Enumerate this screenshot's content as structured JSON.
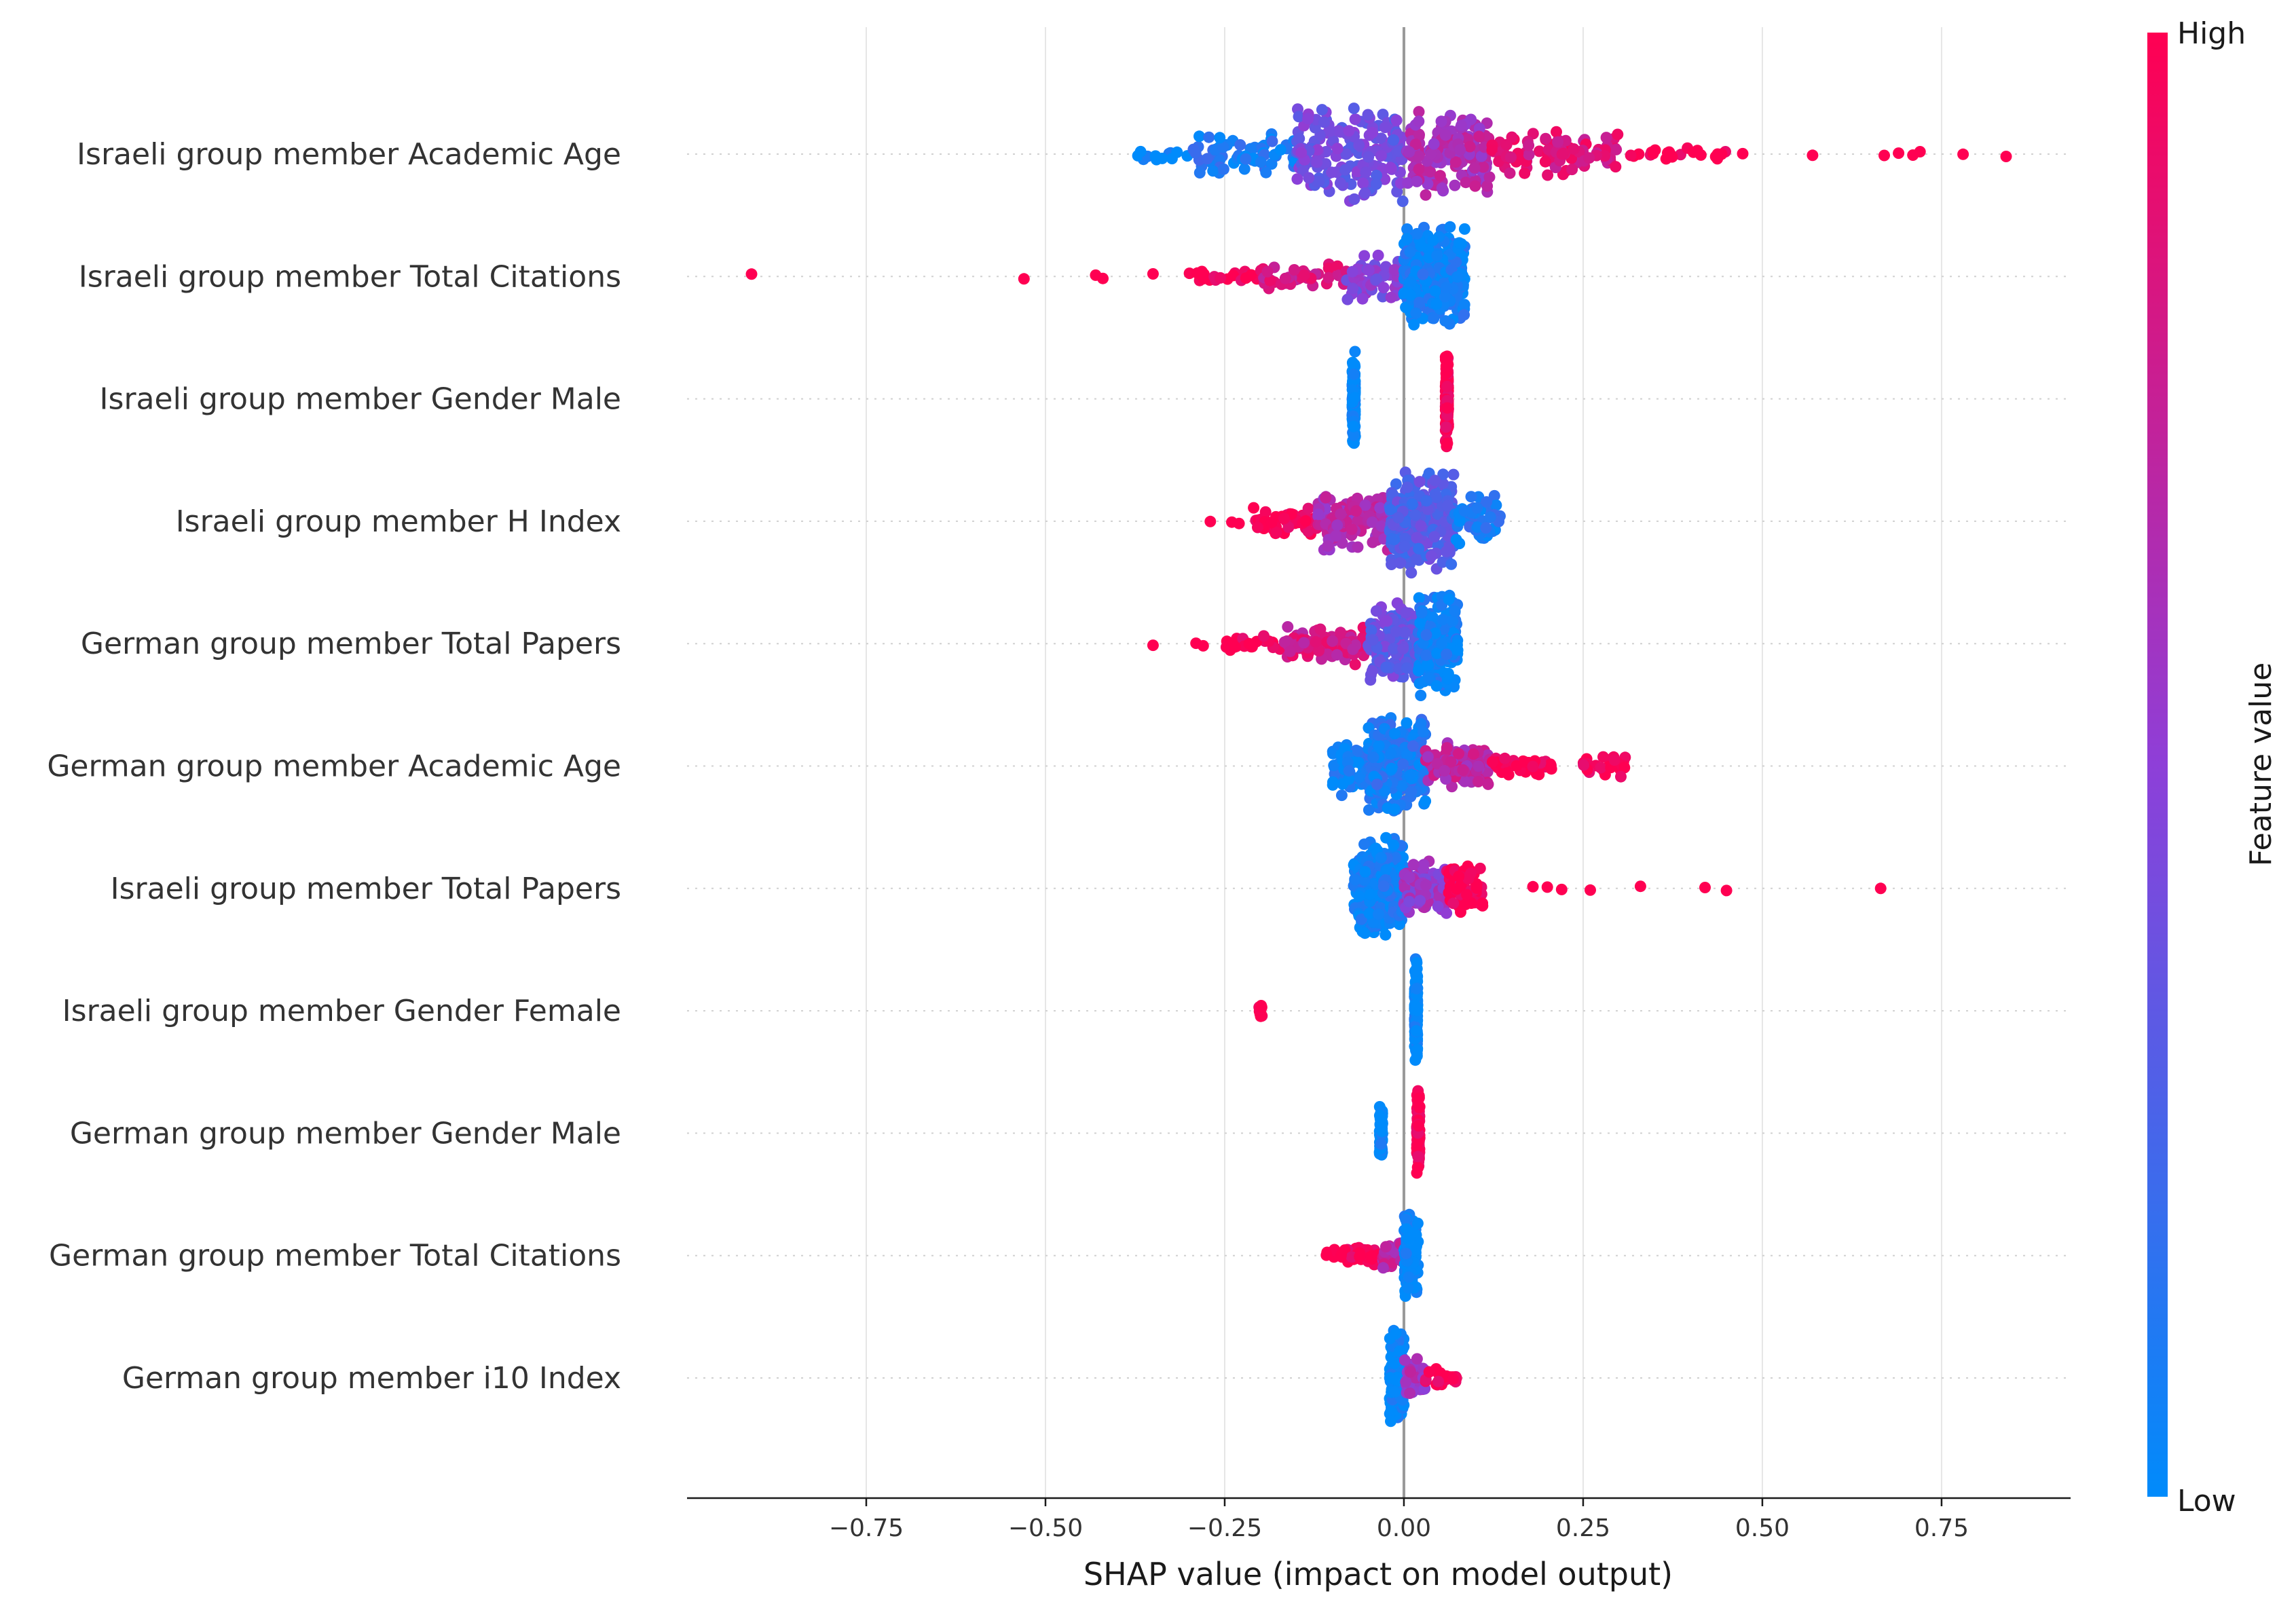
{
  "chart_data": {
    "type": "scatter",
    "subtype": "shap-beeswarm",
    "xlabel": "SHAP value (impact on model output)",
    "xlim": [
      -1.0,
      0.93
    ],
    "xticks": [
      -0.75,
      -0.5,
      -0.25,
      0.0,
      0.25,
      0.5,
      0.75
    ],
    "xtick_labels": [
      "−0.75",
      "−0.50",
      "−0.25",
      "0.00",
      "0.25",
      "0.50",
      "0.75"
    ],
    "grid": "vertical",
    "colorbar": {
      "title": "Feature value",
      "high_label": "High",
      "low_label": "Low",
      "low_color": "#008bfb",
      "high_color": "#ff0052",
      "mid_color": "#8e3fd8"
    },
    "features": [
      {
        "name": "Israeli group member Academic Age",
        "bands": [
          {
            "from": -0.38,
            "to": -0.3,
            "n": 12,
            "spread": 0.15,
            "value": 0.0
          },
          {
            "from": -0.3,
            "to": -0.15,
            "n": 70,
            "spread": 0.45,
            "value": 0.1
          },
          {
            "from": -0.15,
            "to": 0.0,
            "n": 180,
            "spread": 1.0,
            "value": 0.4
          },
          {
            "from": 0.0,
            "to": 0.12,
            "n": 150,
            "spread": 0.85,
            "value": 0.65
          },
          {
            "from": 0.12,
            "to": 0.3,
            "n": 90,
            "spread": 0.45,
            "value": 0.85
          },
          {
            "from": 0.3,
            "to": 0.48,
            "n": 25,
            "spread": 0.12,
            "value": 1.0
          }
        ],
        "outliers": [
          {
            "x": 0.57,
            "v": 1.0
          },
          {
            "x": 0.67,
            "v": 1.0
          },
          {
            "x": 0.69,
            "v": 1.0
          },
          {
            "x": 0.71,
            "v": 1.0
          },
          {
            "x": 0.72,
            "v": 1.0
          },
          {
            "x": 0.78,
            "v": 1.0
          },
          {
            "x": 0.84,
            "v": 1.0
          }
        ]
      },
      {
        "name": "Israeli group member Total Citations",
        "bands": [
          {
            "from": -0.3,
            "to": -0.2,
            "n": 25,
            "spread": 0.1,
            "value": 1.0
          },
          {
            "from": -0.2,
            "to": -0.08,
            "n": 45,
            "spread": 0.25,
            "value": 0.8
          },
          {
            "from": -0.08,
            "to": 0.0,
            "n": 60,
            "spread": 0.5,
            "value": 0.45
          },
          {
            "from": 0.0,
            "to": 0.085,
            "n": 320,
            "spread": 1.0,
            "value": 0.05
          }
        ],
        "outliers": [
          {
            "x": -0.91,
            "v": 1.0
          },
          {
            "x": -0.53,
            "v": 1.0
          },
          {
            "x": -0.43,
            "v": 1.0
          },
          {
            "x": -0.42,
            "v": 1.0
          },
          {
            "x": -0.35,
            "v": 1.0
          }
        ]
      },
      {
        "name": "Israeli group member Gender Male",
        "bands": [
          {
            "from": -0.072,
            "to": -0.068,
            "n": 160,
            "spread": 0.95,
            "value": 0.0
          },
          {
            "from": 0.058,
            "to": 0.062,
            "n": 170,
            "spread": 1.0,
            "value": 1.0
          }
        ],
        "outliers": []
      },
      {
        "name": "Israeli group member H Index",
        "bands": [
          {
            "from": -0.21,
            "to": -0.12,
            "n": 50,
            "spread": 0.3,
            "value": 1.0
          },
          {
            "from": -0.12,
            "to": -0.02,
            "n": 110,
            "spread": 0.6,
            "value": 0.65
          },
          {
            "from": -0.02,
            "to": 0.07,
            "n": 230,
            "spread": 1.0,
            "value": 0.3
          },
          {
            "from": 0.07,
            "to": 0.135,
            "n": 60,
            "spread": 0.5,
            "value": 0.1
          }
        ],
        "outliers": [
          {
            "x": -0.27,
            "v": 1.0
          },
          {
            "x": -0.24,
            "v": 1.0
          },
          {
            "x": -0.23,
            "v": 1.0
          }
        ]
      },
      {
        "name": "German group member Total Papers",
        "bands": [
          {
            "from": -0.25,
            "to": -0.17,
            "n": 30,
            "spread": 0.15,
            "value": 1.0
          },
          {
            "from": -0.17,
            "to": -0.05,
            "n": 100,
            "spread": 0.4,
            "value": 0.8
          },
          {
            "from": -0.05,
            "to": 0.02,
            "n": 150,
            "spread": 0.8,
            "value": 0.35
          },
          {
            "from": 0.02,
            "to": 0.075,
            "n": 170,
            "spread": 1.0,
            "value": 0.05
          }
        ],
        "outliers": [
          {
            "x": -0.35,
            "v": 1.0
          },
          {
            "x": -0.29,
            "v": 1.0
          },
          {
            "x": -0.28,
            "v": 1.0
          }
        ]
      },
      {
        "name": "German group member Academic Age",
        "bands": [
          {
            "from": -0.1,
            "to": -0.05,
            "n": 60,
            "spread": 0.6,
            "value": 0.05
          },
          {
            "from": -0.05,
            "to": 0.03,
            "n": 260,
            "spread": 1.0,
            "value": 0.1
          },
          {
            "from": 0.03,
            "to": 0.12,
            "n": 90,
            "spread": 0.45,
            "value": 0.7
          },
          {
            "from": 0.12,
            "to": 0.21,
            "n": 45,
            "spread": 0.2,
            "value": 1.0
          },
          {
            "from": 0.25,
            "to": 0.31,
            "n": 25,
            "spread": 0.25,
            "value": 1.0
          }
        ],
        "outliers": []
      },
      {
        "name": "Israeli group member Total Papers",
        "bands": [
          {
            "from": -0.07,
            "to": 0.0,
            "n": 260,
            "spread": 1.0,
            "value": 0.05
          },
          {
            "from": 0.0,
            "to": 0.06,
            "n": 110,
            "spread": 0.55,
            "value": 0.55
          },
          {
            "from": 0.06,
            "to": 0.11,
            "n": 60,
            "spread": 0.5,
            "value": 1.0
          }
        ],
        "outliers": [
          {
            "x": 0.18,
            "v": 1.0
          },
          {
            "x": 0.2,
            "v": 1.0
          },
          {
            "x": 0.22,
            "v": 1.0
          },
          {
            "x": 0.26,
            "v": 1.0
          },
          {
            "x": 0.33,
            "v": 1.0
          },
          {
            "x": 0.42,
            "v": 1.0
          },
          {
            "x": 0.45,
            "v": 1.0
          },
          {
            "x": 0.665,
            "v": 1.0
          }
        ]
      },
      {
        "name": "Israeli group member Gender Female",
        "bands": [
          {
            "from": -0.202,
            "to": -0.198,
            "n": 10,
            "spread": 0.15,
            "value": 1.0
          },
          {
            "from": 0.015,
            "to": 0.019,
            "n": 160,
            "spread": 1.0,
            "value": 0.0
          }
        ],
        "outliers": []
      },
      {
        "name": "German group member Gender Male",
        "bands": [
          {
            "from": -0.034,
            "to": -0.03,
            "n": 60,
            "spread": 0.55,
            "value": 0.0
          },
          {
            "from": 0.018,
            "to": 0.022,
            "n": 100,
            "spread": 0.85,
            "value": 1.0
          }
        ],
        "outliers": []
      },
      {
        "name": "German group member Total Citations",
        "bands": [
          {
            "from": -0.11,
            "to": -0.03,
            "n": 45,
            "spread": 0.18,
            "value": 1.0
          },
          {
            "from": -0.03,
            "to": 0.0,
            "n": 40,
            "spread": 0.3,
            "value": 0.7
          },
          {
            "from": 0.0,
            "to": 0.02,
            "n": 140,
            "spread": 0.9,
            "value": 0.0
          }
        ],
        "outliers": []
      },
      {
        "name": "German group member i10 Index",
        "bands": [
          {
            "from": -0.02,
            "to": 0.0,
            "n": 130,
            "spread": 1.0,
            "value": 0.0
          },
          {
            "from": 0.0,
            "to": 0.03,
            "n": 50,
            "spread": 0.45,
            "value": 0.6
          },
          {
            "from": 0.03,
            "to": 0.075,
            "n": 25,
            "spread": 0.2,
            "value": 1.0
          }
        ],
        "outliers": []
      }
    ]
  }
}
